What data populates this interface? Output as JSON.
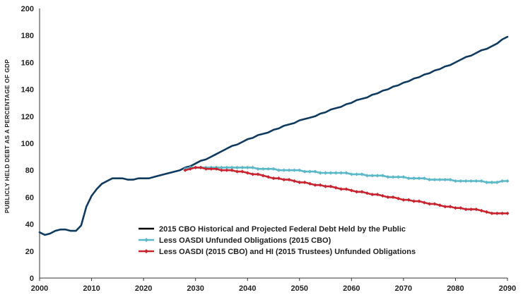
{
  "chart_data": {
    "type": "line",
    "title": "",
    "xlabel": "",
    "ylabel": "PUBLICLY HELD DEBT AS A PERCENTAGE OF GDP",
    "xlim": [
      2000,
      2090
    ],
    "ylim": [
      0,
      200
    ],
    "x_ticks": [
      2000,
      2010,
      2020,
      2030,
      2040,
      2050,
      2060,
      2070,
      2080,
      2090
    ],
    "y_ticks": [
      0,
      20,
      40,
      60,
      80,
      100,
      120,
      140,
      160,
      180,
      200
    ],
    "grid": false,
    "legend_position": "bottom-center",
    "series": [
      {
        "name": "2015 CBO Historical and Projected Federal Debt Held by the Public",
        "color": "#0f3a5f",
        "marker": "none",
        "x": [
          2000,
          2001,
          2002,
          2003,
          2004,
          2005,
          2006,
          2007,
          2008,
          2009,
          2010,
          2011,
          2012,
          2013,
          2014,
          2015,
          2016,
          2017,
          2018,
          2019,
          2020,
          2021,
          2022,
          2023,
          2024,
          2025,
          2026,
          2027,
          2028,
          2029,
          2030,
          2031,
          2032,
          2033,
          2034,
          2035,
          2036,
          2037,
          2038,
          2039,
          2040,
          2041,
          2042,
          2043,
          2044,
          2045,
          2046,
          2047,
          2048,
          2049,
          2050,
          2051,
          2052,
          2053,
          2054,
          2055,
          2056,
          2057,
          2058,
          2059,
          2060,
          2061,
          2062,
          2063,
          2064,
          2065,
          2066,
          2067,
          2068,
          2069,
          2070,
          2071,
          2072,
          2073,
          2074,
          2075,
          2076,
          2077,
          2078,
          2079,
          2080,
          2081,
          2082,
          2083,
          2084,
          2085,
          2086,
          2087,
          2088,
          2089,
          2090
        ],
        "y": [
          34,
          32,
          33,
          35,
          36,
          36,
          35,
          35,
          39,
          53,
          61,
          66,
          70,
          72,
          74,
          74,
          74,
          73,
          73,
          74,
          74,
          74,
          75,
          76,
          77,
          78,
          79,
          80,
          82,
          83,
          85,
          87,
          88,
          90,
          92,
          94,
          96,
          98,
          99,
          101,
          103,
          104,
          106,
          107,
          108,
          110,
          111,
          113,
          114,
          115,
          117,
          118,
          119,
          120,
          122,
          123,
          125,
          126,
          127,
          129,
          130,
          132,
          133,
          134,
          136,
          137,
          139,
          140,
          142,
          143,
          145,
          146,
          148,
          149,
          151,
          152,
          154,
          155,
          157,
          158,
          160,
          162,
          164,
          165,
          167,
          169,
          170,
          172,
          174,
          177,
          179
        ]
      },
      {
        "name": "Less OASDI Unfunded Obligations (2015 CBO)",
        "color": "#5ab8c9",
        "marker": "diamond",
        "x": [
          2028,
          2029,
          2030,
          2031,
          2032,
          2033,
          2034,
          2035,
          2036,
          2037,
          2038,
          2039,
          2040,
          2041,
          2042,
          2043,
          2044,
          2045,
          2046,
          2047,
          2048,
          2049,
          2050,
          2051,
          2052,
          2053,
          2054,
          2055,
          2056,
          2057,
          2058,
          2059,
          2060,
          2061,
          2062,
          2063,
          2064,
          2065,
          2066,
          2067,
          2068,
          2069,
          2070,
          2071,
          2072,
          2073,
          2074,
          2075,
          2076,
          2077,
          2078,
          2079,
          2080,
          2081,
          2082,
          2083,
          2084,
          2085,
          2086,
          2087,
          2088,
          2089,
          2090
        ],
        "y": [
          81,
          82,
          82,
          82,
          82,
          82,
          82,
          82,
          82,
          82,
          82,
          82,
          82,
          82,
          81,
          81,
          81,
          81,
          80,
          80,
          80,
          80,
          80,
          79,
          79,
          79,
          78,
          78,
          78,
          78,
          78,
          78,
          77,
          77,
          77,
          76,
          76,
          76,
          76,
          75,
          75,
          75,
          75,
          74,
          74,
          74,
          74,
          73,
          73,
          73,
          73,
          73,
          72,
          72,
          72,
          72,
          72,
          72,
          71,
          71,
          71,
          72,
          72
        ]
      },
      {
        "name": "Less OASDI (2015 CBO) and HI (2015 Trustees) Unfunded Obligations",
        "color": "#c8242f",
        "marker": "diamond",
        "x": [
          2028,
          2029,
          2030,
          2031,
          2032,
          2033,
          2034,
          2035,
          2036,
          2037,
          2038,
          2039,
          2040,
          2041,
          2042,
          2043,
          2044,
          2045,
          2046,
          2047,
          2048,
          2049,
          2050,
          2051,
          2052,
          2053,
          2054,
          2055,
          2056,
          2057,
          2058,
          2059,
          2060,
          2061,
          2062,
          2063,
          2064,
          2065,
          2066,
          2067,
          2068,
          2069,
          2070,
          2071,
          2072,
          2073,
          2074,
          2075,
          2076,
          2077,
          2078,
          2079,
          2080,
          2081,
          2082,
          2083,
          2084,
          2085,
          2086,
          2087,
          2088,
          2089,
          2090
        ],
        "y": [
          80,
          81,
          82,
          82,
          81,
          81,
          81,
          80,
          80,
          80,
          79,
          79,
          78,
          77,
          77,
          76,
          75,
          74,
          74,
          73,
          73,
          72,
          71,
          71,
          70,
          69,
          69,
          68,
          68,
          67,
          66,
          66,
          65,
          64,
          64,
          63,
          62,
          62,
          61,
          60,
          60,
          59,
          58,
          58,
          57,
          57,
          56,
          55,
          55,
          54,
          53,
          53,
          52,
          52,
          51,
          51,
          51,
          50,
          49,
          48,
          48,
          48,
          48
        ]
      }
    ]
  }
}
